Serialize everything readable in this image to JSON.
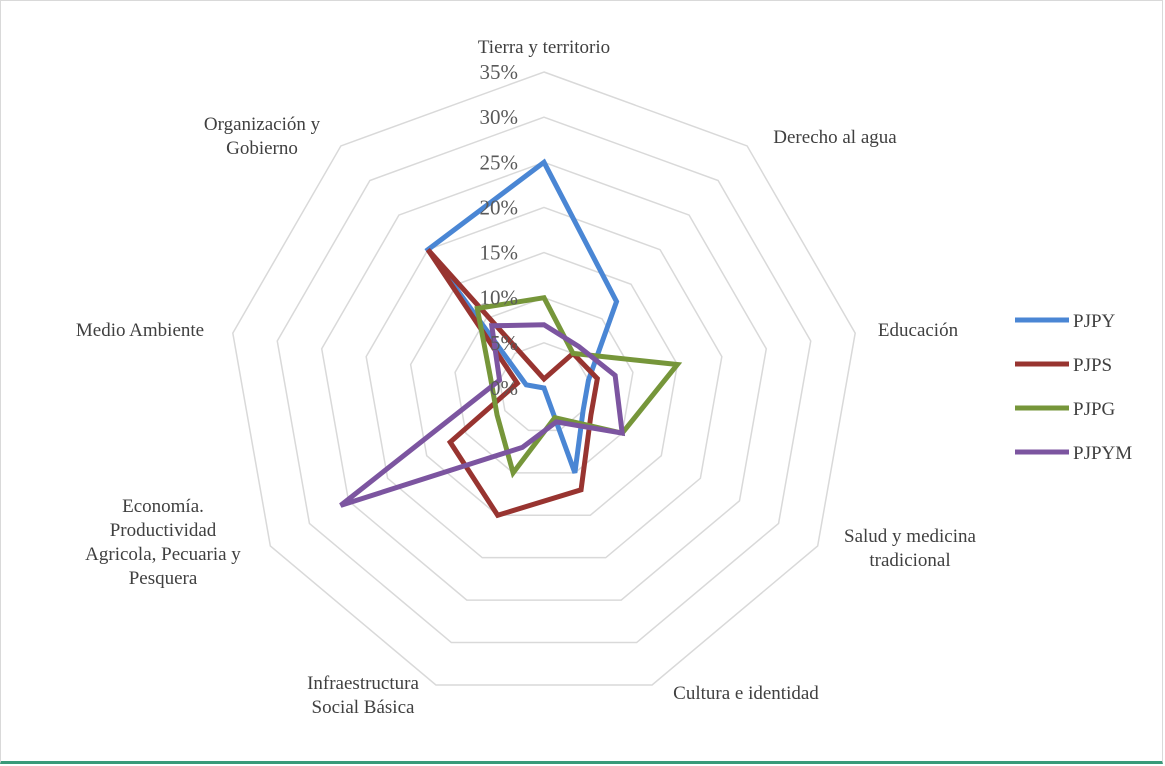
{
  "chart_data": {
    "type": "radar",
    "categories": [
      [
        "Tierra y territorio"
      ],
      [
        "Derecho al  agua"
      ],
      [
        "Educación"
      ],
      [
        "Salud y medicina",
        "tradicional"
      ],
      [
        "Cultura e identidad"
      ],
      [
        "Infraestructura",
        "Social Básica"
      ],
      [
        "Economía.",
        "Productividad",
        "Agricola, Pecuaria y",
        "Pesquera"
      ],
      [
        "Medio Ambiente"
      ],
      [
        "Organización y",
        "Gobierno"
      ]
    ],
    "rlim": [
      0,
      35
    ],
    "ticks": [
      "0%",
      "5%",
      "10%",
      "15%",
      "20%",
      "25%",
      "30%",
      "35%"
    ],
    "tick_values": [
      0,
      5,
      10,
      15,
      20,
      25,
      30,
      35
    ],
    "grid": true,
    "legend_position": "right",
    "series": [
      {
        "name": "PJPY",
        "color": "#4a86d4",
        "values": [
          25,
          12.5,
          5,
          5,
          10,
          0,
          0,
          2,
          20
        ]
      },
      {
        "name": "PJPS",
        "color": "#983430",
        "values": [
          1,
          5,
          6,
          6,
          12,
          15,
          12,
          3,
          20
        ]
      },
      {
        "name": "PJPG",
        "color": "#76963a",
        "values": [
          10,
          5,
          15,
          10,
          3.5,
          10,
          6,
          6,
          11.5
        ]
      },
      {
        "name": "PJPYM",
        "color": "#7c55a0",
        "values": [
          7,
          6,
          8,
          10,
          4,
          7,
          26,
          5,
          9
        ]
      }
    ]
  }
}
